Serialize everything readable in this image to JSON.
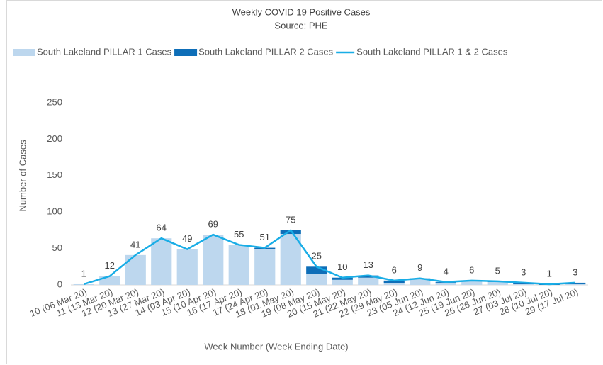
{
  "chart_data": {
    "type": "bar",
    "title": "Weekly COVID 19 Positive Cases",
    "subtitle": "Source: PHE",
    "y_label": "Number of Cases",
    "x_label": "Week Number (Week Ending Date)",
    "categories": [
      "10 (06 Mar 20)",
      "11 (13 Mar 20)",
      "12 (20 Mar 20)",
      "13 (27 Mar 20)",
      "14 (03 Apr 20)",
      "15 (10 Apr 20)",
      "16 (17 Apr 20)",
      "17 (24 Apr 20)",
      "18 (01 May 20)",
      "19 (08 May 20)",
      "20 (15 May 20)",
      "21 (22 May 20)",
      "22 (29 May 20)",
      "23 (05 Jun 20)",
      "24 (12 Jun 20)",
      "25 (19 Jun 20)",
      "26 (26 Jun 20)",
      "27 (03 Jul 20)",
      "28 (10 Jul 20)",
      "29 (17 Jul 20)"
    ],
    "series": [
      {
        "name": "South Lakeland PILLAR 1 Cases",
        "type": "bar",
        "color": "#bdd7ee",
        "values": [
          1,
          12,
          41,
          64,
          49,
          69,
          55,
          49,
          70,
          15,
          7,
          10,
          2,
          8,
          3,
          5,
          4,
          1,
          0,
          1
        ]
      },
      {
        "name": "South Lakeland PILLAR 2 Cases",
        "type": "bar",
        "color": "#0e6eb8",
        "values": [
          0,
          0,
          0,
          0,
          0,
          0,
          0,
          2,
          5,
          10,
          3,
          3,
          4,
          1,
          1,
          1,
          1,
          2,
          1,
          2
        ]
      },
      {
        "name": "South Lakeland PILLAR 1 & 2 Cases",
        "type": "line",
        "color": "#19ade6",
        "values": [
          1,
          12,
          41,
          64,
          49,
          69,
          55,
          51,
          75,
          25,
          10,
          13,
          6,
          9,
          4,
          6,
          5,
          3,
          1,
          3
        ]
      }
    ],
    "ylim": [
      0,
      250
    ],
    "yticks": [
      0,
      50,
      100,
      150,
      200,
      250
    ],
    "grid": false,
    "legend": "top"
  }
}
